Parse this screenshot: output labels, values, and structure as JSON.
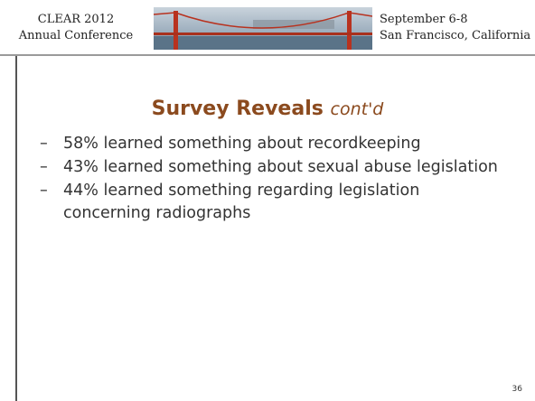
{
  "header": {
    "left": [
      "CLEAR 2012",
      "Annual Conference"
    ],
    "right": [
      "September 6-8",
      "San Francisco, California"
    ]
  },
  "slide": {
    "title": "Survey Reveals",
    "title_suffix": "cont'd",
    "items": [
      {
        "marker": "–",
        "text": "58% learned something about recordkeeping"
      },
      {
        "marker": "–",
        "text": "43% learned something about sexual abuse legislation"
      },
      {
        "marker": "–",
        "text": "44% learned something regarding legislation concerning radiographs"
      }
    ],
    "page_number": "36"
  }
}
